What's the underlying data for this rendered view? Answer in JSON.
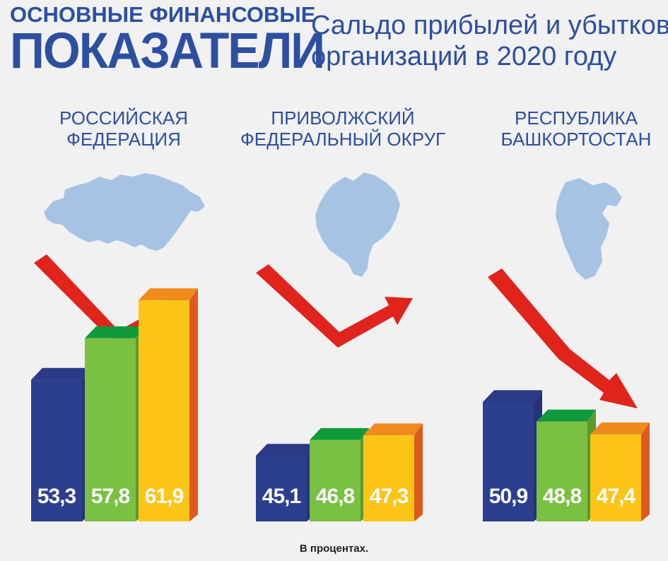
{
  "header": {
    "line1": "ОСНОВНЫЕ ФИНАНСОВЫЕ",
    "line2": "ПОКАЗАТЕЛИ",
    "subtitle_line1": "Сальдо прибылей и убытков",
    "subtitle_line2": "организаций в 2020 году"
  },
  "colors": {
    "navy": "#2c3f8e",
    "green": "#7ac043",
    "yellow": "#fdc518",
    "map": "#a7c3e3",
    "arrow": "#e0241b"
  },
  "footnote": "В процентах.",
  "icons": [
    "russia-map-icon",
    "volga-district-map-icon",
    "bashkortostan-map-icon",
    "trend-arrow-icon"
  ],
  "chart_data": [
    {
      "type": "bar",
      "region": [
        "РОССИЙСКАЯ",
        "ФЕДЕРАЦИЯ"
      ],
      "values": [
        53.3,
        57.8,
        61.9
      ],
      "labels": [
        "53,3",
        "57,8",
        "61,9"
      ],
      "trend": "down-then-up"
    },
    {
      "type": "bar",
      "region": [
        "ПРИВОЛЖСКИЙ",
        "ФЕДЕРАЛЬНЫЙ ОКРУГ"
      ],
      "values": [
        45.1,
        46.8,
        47.3
      ],
      "labels": [
        "45,1",
        "46,8",
        "47,3"
      ],
      "trend": "down-then-up"
    },
    {
      "type": "bar",
      "region": [
        "РЕСПУБЛИКА",
        "БАШКОРТОСТАН"
      ],
      "values": [
        50.9,
        48.8,
        47.4
      ],
      "labels": [
        "50,9",
        "48,8",
        "47,4"
      ],
      "trend": "down"
    }
  ]
}
